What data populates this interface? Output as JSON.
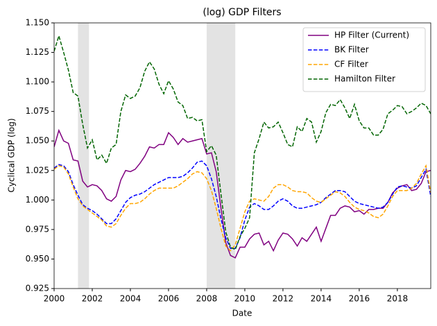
{
  "chart_data": {
    "type": "line",
    "title": "(log) GDP Filters",
    "x_label": "Date",
    "y_label": "Cyclical GDP (log)",
    "x": [
      2000,
      2000.25,
      2000.5,
      2000.75,
      2001,
      2001.25,
      2001.5,
      2001.75,
      2002,
      2002.25,
      2002.5,
      2002.75,
      2003,
      2003.25,
      2003.5,
      2003.75,
      2004,
      2004.25,
      2004.5,
      2004.75,
      2005,
      2005.25,
      2005.5,
      2005.75,
      2006,
      2006.25,
      2006.5,
      2006.75,
      2007,
      2007.25,
      2007.5,
      2007.75,
      2008,
      2008.25,
      2008.5,
      2008.75,
      2009,
      2009.25,
      2009.5,
      2009.75,
      2010,
      2010.25,
      2010.5,
      2010.75,
      2011,
      2011.25,
      2011.5,
      2011.75,
      2012,
      2012.25,
      2012.5,
      2012.75,
      2013,
      2013.25,
      2013.5,
      2013.75,
      2014,
      2014.25,
      2014.5,
      2014.75,
      2015,
      2015.25,
      2015.5,
      2015.75,
      2016,
      2016.25,
      2016.5,
      2016.75,
      2017,
      2017.25,
      2017.5,
      2017.75,
      2018,
      2018.25,
      2018.5,
      2018.75,
      2019,
      2019.25,
      2019.5,
      2019.75
    ],
    "series": [
      {
        "name": "HP Filter (Current)",
        "color": "#800080",
        "dash": "solid",
        "values": [
          1.045,
          1.059,
          1.05,
          1.048,
          1.034,
          1.033,
          1.016,
          1.011,
          1.013,
          1.012,
          1.008,
          1.001,
          0.999,
          1.003,
          1.017,
          1.025,
          1.024,
          1.026,
          1.031,
          1.037,
          1.045,
          1.044,
          1.047,
          1.047,
          1.057,
          1.053,
          1.047,
          1.052,
          1.049,
          1.05,
          1.051,
          1.052,
          1.039,
          1.04,
          1.024,
          0.993,
          0.964,
          0.953,
          0.951,
          0.96,
          0.96,
          0.967,
          0.971,
          0.972,
          0.962,
          0.965,
          0.957,
          0.966,
          0.972,
          0.971,
          0.967,
          0.961,
          0.968,
          0.965,
          0.971,
          0.977,
          0.965,
          0.976,
          0.987,
          0.987,
          0.993,
          0.995,
          0.994,
          0.99,
          0.991,
          0.988,
          0.992,
          0.992,
          0.993,
          0.993,
          0.998,
          1.006,
          1.01,
          1.012,
          1.013,
          1.008,
          1.009,
          1.014,
          1.024,
          1.025
        ]
      },
      {
        "name": "BK Filter",
        "color": "#0000ff",
        "dash": "dashed",
        "values": [
          1.027,
          1.03,
          1.029,
          1.024,
          1.013,
          1.004,
          0.996,
          0.993,
          0.991,
          0.988,
          0.984,
          0.98,
          0.98,
          0.984,
          0.991,
          0.998,
          1.002,
          1.004,
          1.005,
          1.007,
          1.01,
          1.013,
          1.015,
          1.017,
          1.019,
          1.019,
          1.019,
          1.02,
          1.023,
          1.027,
          1.032,
          1.033,
          1.029,
          1.018,
          1.003,
          0.984,
          0.968,
          0.959,
          0.959,
          0.968,
          0.983,
          0.994,
          0.997,
          0.995,
          0.992,
          0.992,
          0.995,
          0.999,
          1.001,
          0.999,
          0.995,
          0.993,
          0.993,
          0.994,
          0.995,
          0.996,
          0.998,
          1.002,
          1.005,
          1.008,
          1.008,
          1.007,
          1.003,
          0.999,
          0.997,
          0.996,
          0.995,
          0.994,
          0.993,
          0.994,
          0.998,
          1.005,
          1.011,
          1.012,
          1.011,
          1.01,
          1.012,
          1.019,
          1.026,
          1.003
        ]
      },
      {
        "name": "CF Filter",
        "color": "#ffa500",
        "dash": "dashed",
        "values": [
          1.026,
          1.029,
          1.028,
          1.022,
          1.011,
          1.001,
          0.995,
          0.992,
          0.989,
          0.986,
          0.983,
          0.978,
          0.977,
          0.98,
          0.987,
          0.993,
          0.997,
          0.997,
          0.998,
          1.001,
          1.005,
          1.008,
          1.01,
          1.01,
          1.01,
          1.01,
          1.012,
          1.015,
          1.018,
          1.022,
          1.024,
          1.023,
          1.018,
          1.008,
          0.993,
          0.976,
          0.961,
          0.957,
          0.962,
          0.976,
          0.99,
          0.999,
          1.001,
          1.0,
          0.999,
          1.003,
          1.01,
          1.013,
          1.013,
          1.011,
          1.008,
          1.007,
          1.007,
          1.006,
          1.002,
          0.999,
          0.998,
          1.001,
          1.004,
          1.007,
          1.006,
          1.003,
          0.998,
          0.994,
          0.992,
          0.991,
          0.989,
          0.986,
          0.985,
          0.988,
          0.995,
          1.003,
          1.008,
          1.008,
          1.008,
          1.01,
          1.014,
          1.022,
          1.029,
          1.006
        ]
      },
      {
        "name": "Hamilton Filter",
        "color": "#006400",
        "dash": "dashed",
        "values": [
          1.126,
          1.139,
          1.125,
          1.11,
          1.091,
          1.088,
          1.064,
          1.044,
          1.051,
          1.034,
          1.038,
          1.031,
          1.044,
          1.047,
          1.075,
          1.089,
          1.086,
          1.088,
          1.095,
          1.109,
          1.117,
          1.111,
          1.098,
          1.09,
          1.101,
          1.094,
          1.083,
          1.08,
          1.069,
          1.07,
          1.067,
          1.068,
          1.041,
          1.046,
          1.038,
          1.005,
          0.973,
          0.96,
          0.958,
          0.969,
          0.976,
          0.985,
          1.04,
          1.052,
          1.066,
          1.061,
          1.062,
          1.066,
          1.057,
          1.047,
          1.045,
          1.062,
          1.058,
          1.069,
          1.066,
          1.049,
          1.058,
          1.074,
          1.081,
          1.08,
          1.085,
          1.078,
          1.069,
          1.081,
          1.067,
          1.061,
          1.061,
          1.055,
          1.055,
          1.06,
          1.073,
          1.076,
          1.08,
          1.079,
          1.073,
          1.075,
          1.078,
          1.082,
          1.08,
          1.073
        ]
      }
    ],
    "shaded_regions": [
      [
        2001.25,
        2001.83
      ],
      [
        2008.0,
        2009.5
      ]
    ],
    "shade_color": "#cccccc",
    "xlim": [
      2000,
      2019.75
    ],
    "ylim": [
      0.925,
      1.15
    ],
    "xticks": [
      2000,
      2002,
      2004,
      2006,
      2008,
      2010,
      2012,
      2014,
      2016,
      2018
    ],
    "yticks": [
      0.925,
      {
        "value": 0.95,
        "label": "0.950"
      },
      0.975,
      {
        "value": 1.0,
        "label": "1.000"
      },
      1.025,
      {
        "value": 1.05,
        "label": "1.050"
      },
      1.075,
      {
        "value": 1.1,
        "label": "1.100"
      },
      1.125,
      {
        "value": 1.15,
        "label": "1.150"
      }
    ],
    "grid": false,
    "legend": "upper right"
  }
}
